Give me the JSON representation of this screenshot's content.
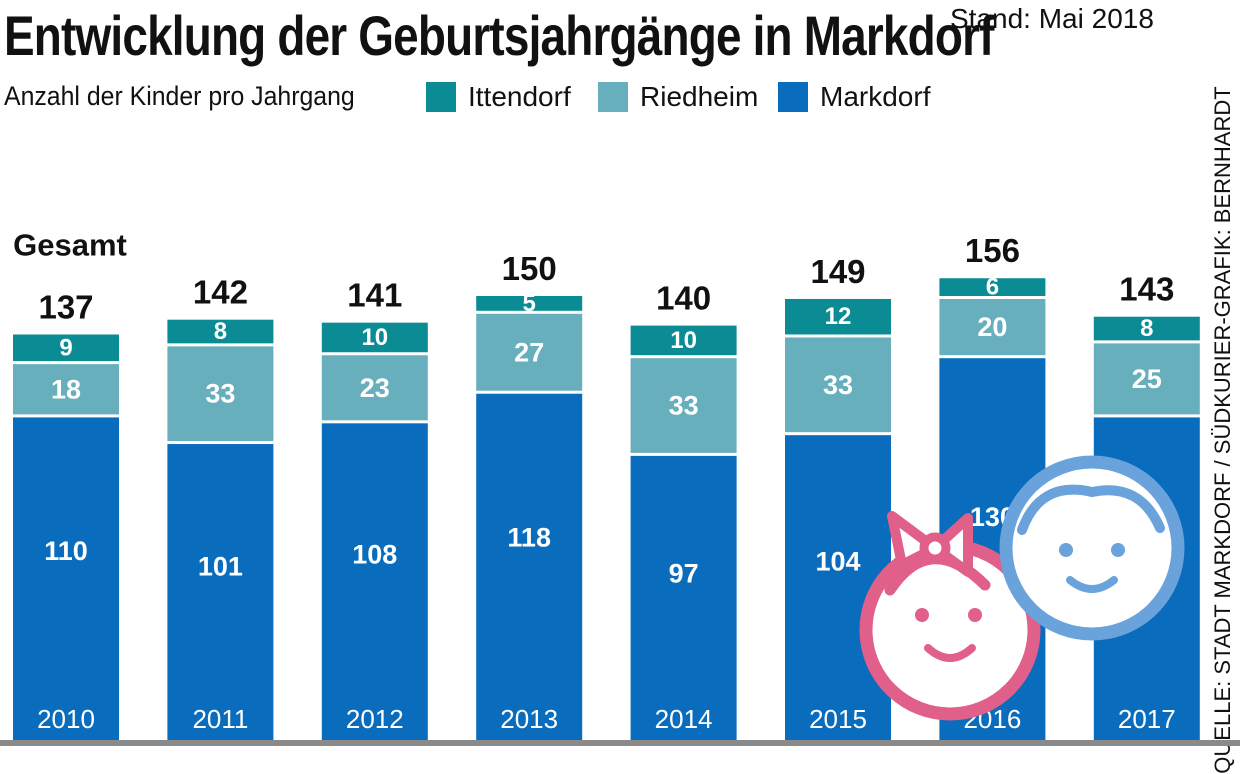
{
  "title": "Entwicklung der Geburtsjahrgänge in Markdorf",
  "stand": "Stand: Mai 2018",
  "source": "QUELLE: STADT MARKDORF / SÜDKURIER-GRAFIK: BERNHARDT",
  "colors": {
    "Markdorf": "#0a6cbc",
    "Riedheim": "#68afbd",
    "Ittendorf": "#0b8c94",
    "girl_icon": "#e0608a",
    "boy_icon": "#6aa2dc"
  },
  "icons": [
    "baby-girl-icon",
    "baby-boy-icon"
  ],
  "chart_data": {
    "type": "bar",
    "stacked": true,
    "title": "Entwicklung der Geburtsjahrgänge in Markdorf",
    "subtitle": "Anzahl der Kinder pro Jahrgang",
    "categories": [
      "2010",
      "2011",
      "2012",
      "2013",
      "2014",
      "2015",
      "2016",
      "2017"
    ],
    "series": [
      {
        "name": "Markdorf",
        "values": [
          110,
          101,
          108,
          118,
          97,
          104,
          130,
          110
        ]
      },
      {
        "name": "Riedheim",
        "values": [
          18,
          33,
          23,
          27,
          33,
          33,
          20,
          25
        ]
      },
      {
        "name": "Ittendorf",
        "values": [
          9,
          8,
          10,
          5,
          10,
          12,
          6,
          8
        ]
      }
    ],
    "totals": [
      137,
      142,
      141,
      150,
      140,
      149,
      156,
      143
    ],
    "total_label": "Gesamt",
    "legend_order": [
      "Ittendorf",
      "Riedheim",
      "Markdorf"
    ],
    "legend_position": "top",
    "ylim": [
      0,
      156
    ],
    "grid": false
  }
}
